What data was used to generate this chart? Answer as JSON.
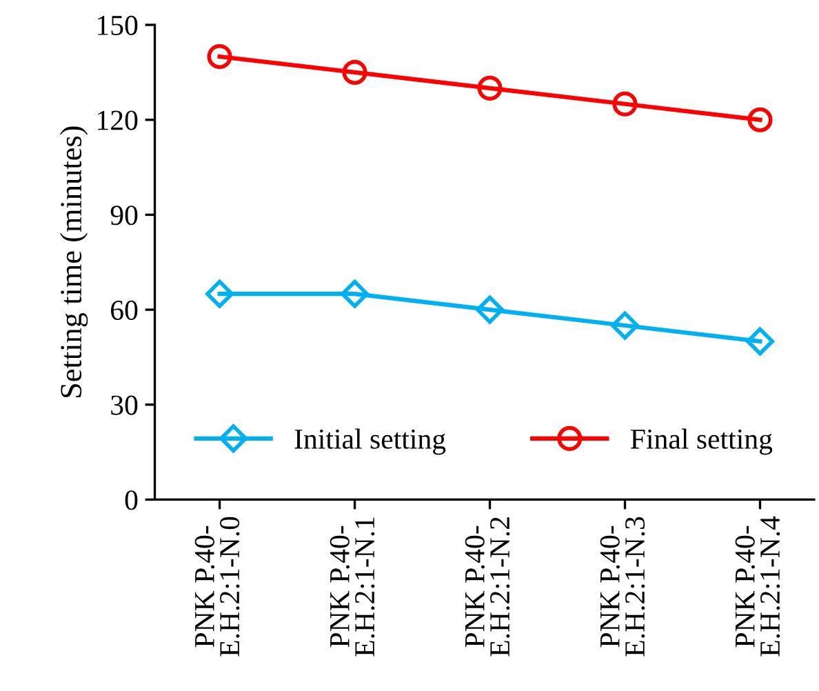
{
  "chart_data": {
    "type": "line",
    "ylabel": "Setting time (minutes)",
    "categories": [
      "PNK P.40-\nE.H.2:1-N.0",
      "PNK P.40-\nE.H.2:1-N.1",
      "PNK P.40-\nE.H.2:1-N.2",
      "PNK P.40-\nE.H.2:1-N.3",
      "PNK P.40-\nE.H.2:1-N.4"
    ],
    "series": [
      {
        "name": "Initial setting",
        "color": "#00b0f0",
        "marker": "diamond",
        "values": [
          65,
          65,
          60,
          55,
          50
        ]
      },
      {
        "name": "Final setting",
        "color": "#ff0000",
        "marker": "circle",
        "values": [
          140,
          135,
          130,
          125,
          120
        ]
      }
    ],
    "ylim": [
      0,
      150
    ],
    "yticks": [
      0,
      30,
      60,
      90,
      120,
      150
    ],
    "grid": false,
    "legend": "bottom",
    "line_style": "solid"
  }
}
